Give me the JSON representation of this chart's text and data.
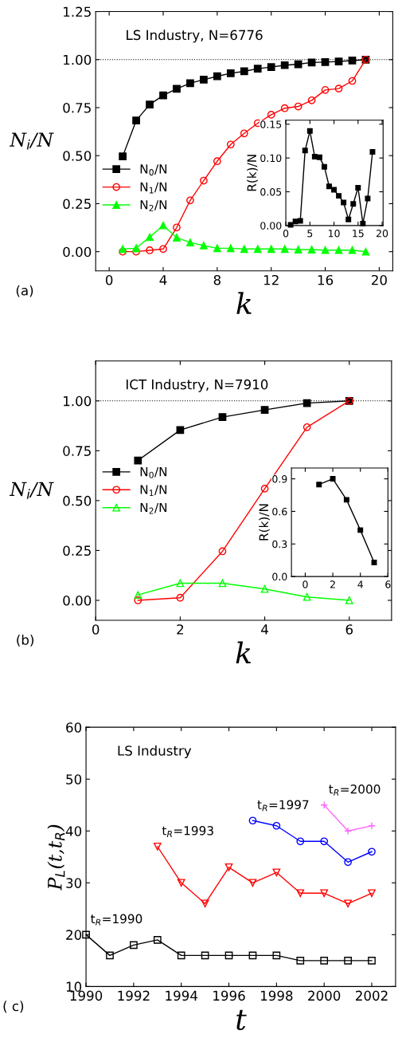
{
  "chart_data": [
    {
      "type": "line",
      "title": "LS Industry, N=6776",
      "xlabel": "k",
      "ylabel": "N$_{i}$/N",
      "annotations": [
        "(a)"
      ],
      "xlim": [
        -1,
        21
      ],
      "xticks": [
        0,
        4,
        8,
        12,
        16,
        20
      ],
      "ylim": [
        -0.1,
        1.25
      ],
      "yticks": [
        {
          "value": 0,
          "label": "0.00"
        },
        {
          "value": 0.25,
          "label": "0.25"
        },
        {
          "value": 0.5,
          "label": "0.50"
        },
        {
          "value": 0.75,
          "label": "0.75"
        },
        {
          "value": 1,
          "label": "1.00"
        },
        {
          "value": 1.25,
          "label": "1.25"
        }
      ],
      "grid": false,
      "legend": "lower left",
      "ref_lines": [
        {
          "axis": "y",
          "value": 1,
          "line_style": "dotted",
          "color": "#000000"
        }
      ],
      "x": [
        1,
        2,
        3,
        4,
        5,
        6,
        7,
        8,
        9,
        10,
        11,
        12,
        13,
        14,
        15,
        16,
        17,
        18,
        19
      ],
      "series": [
        {
          "name": "N$_{0}$/N",
          "color": "#000000",
          "marker": "square",
          "values": [
            0.496,
            0.683,
            0.766,
            0.814,
            0.848,
            0.877,
            0.896,
            0.913,
            0.929,
            0.939,
            0.953,
            0.961,
            0.971,
            0.976,
            0.985,
            0.987,
            0.99,
            0.995,
            1.0
          ]
        },
        {
          "name": "N$_{1}$/N",
          "color": "#ff0000",
          "marker": "circle_open",
          "values": [
            0.0,
            0.0,
            0.007,
            0.014,
            0.126,
            0.267,
            0.37,
            0.471,
            0.558,
            0.616,
            0.669,
            0.713,
            0.747,
            0.756,
            0.788,
            0.842,
            0.849,
            0.889,
            1.0
          ]
        },
        {
          "name": "N$_{2}$/N",
          "color": "#00ff00",
          "marker": "triangle",
          "values": [
            0.014,
            0.018,
            0.076,
            0.137,
            0.073,
            0.048,
            0.032,
            0.018,
            0.018,
            0.014,
            0.014,
            0.014,
            0.014,
            0.011,
            0.011,
            0.008,
            0.008,
            0.008,
            0.0
          ]
        }
      ]
    },
    {
      "type": "line",
      "ylabel": "R(k)/N",
      "xlim": [
        0,
        20.2
      ],
      "xticks": [
        0,
        5,
        10,
        15,
        20
      ],
      "ylim": [
        0,
        0.156
      ],
      "yticks": [
        {
          "value": 0,
          "label": "0.00"
        },
        {
          "value": 0.05,
          "label": "0.05"
        },
        {
          "value": 0.1,
          "label": "0.10"
        },
        {
          "value": 0.15,
          "label": "0.15"
        }
      ],
      "grid": false,
      "x": [
        1,
        2,
        3,
        4,
        5,
        6,
        7,
        8,
        9,
        10,
        11,
        12,
        13,
        14,
        15,
        16,
        17,
        18
      ],
      "series": [
        {
          "color": "#000000",
          "marker": "square",
          "values": [
            0.001,
            0.006,
            0.007,
            0.111,
            0.14,
            0.102,
            0.101,
            0.087,
            0.058,
            0.053,
            0.044,
            0.034,
            0.009,
            0.032,
            0.056,
            0.003,
            0.04,
            0.109
          ]
        }
      ]
    },
    {
      "type": "line",
      "title": "ICT Industry, N=7910",
      "xlabel": "k",
      "ylabel": "N$_{i}$/N",
      "annotations": [
        "(b)"
      ],
      "xlim": [
        0,
        7
      ],
      "xticks": [
        0,
        2,
        4,
        6
      ],
      "ylim": [
        -0.1,
        1.2
      ],
      "yticks": [
        {
          "value": 0,
          "label": "0.00"
        },
        {
          "value": 0.25,
          "label": "0.25"
        },
        {
          "value": 0.5,
          "label": "0.50"
        },
        {
          "value": 0.75,
          "label": "0.75"
        },
        {
          "value": 1,
          "label": "1.00"
        }
      ],
      "grid": false,
      "legend": "center left",
      "ref_lines": [
        {
          "axis": "y",
          "value": 1,
          "line_style": "dotted",
          "color": "#000000"
        }
      ],
      "x": [
        1,
        2,
        3,
        4,
        5,
        6
      ],
      "series": [
        {
          "name": "N$_{0}$/N",
          "color": "#000000",
          "marker": "square",
          "values": [
            0.701,
            0.854,
            0.919,
            0.955,
            0.989,
            1.0
          ]
        },
        {
          "name": "N$_{1}$/N",
          "color": "#ff0000",
          "marker": "circle_open",
          "values": [
            0.0,
            0.013,
            0.246,
            0.56,
            0.868,
            1.0
          ]
        },
        {
          "name": "N$_{2}$/N",
          "color": "#00ff00",
          "marker": "triangle_open",
          "values": [
            0.027,
            0.086,
            0.086,
            0.057,
            0.017,
            0.0
          ]
        }
      ]
    },
    {
      "type": "line",
      "ylabel": "R(k)/N",
      "xlim": [
        -1,
        6
      ],
      "xticks": [
        0,
        2,
        4,
        6
      ],
      "ylim": [
        0,
        1.0
      ],
      "yticks": [
        {
          "value": 0,
          "label": "0.0"
        },
        {
          "value": 0.3,
          "label": "0.3"
        },
        {
          "value": 0.6,
          "label": "0.6"
        },
        {
          "value": 0.9,
          "label": "0.9"
        }
      ],
      "grid": false,
      "x": [
        1,
        2,
        3,
        4,
        5
      ],
      "series": [
        {
          "color": "#000000",
          "marker": "square",
          "values": [
            0.848,
            0.9,
            0.707,
            0.428,
            0.13
          ]
        }
      ]
    },
    {
      "type": "line",
      "title": "LS Industry",
      "xlabel": "t",
      "ylabel": "P$_{L}$(t,t$_{R}$)",
      "annotations": [
        "( c)"
      ],
      "xlim": [
        1990,
        2003
      ],
      "xticks": [
        1990,
        1992,
        1994,
        1996,
        1998,
        2000,
        2002
      ],
      "ylim": [
        10,
        60
      ],
      "yticks": [
        10,
        20,
        30,
        40,
        50,
        60
      ],
      "grid": false,
      "series": [
        {
          "name": "t$_{R}$=1990",
          "color": "#000000",
          "marker": "square_open",
          "x": [
            1990,
            1991,
            1992,
            1993,
            1994,
            1995,
            1996,
            1997,
            1998,
            1999,
            2000,
            2001,
            2002
          ],
          "values": [
            20,
            16,
            18,
            19,
            16,
            16,
            16,
            16,
            16,
            15,
            15,
            15,
            15
          ]
        },
        {
          "name": "t$_{R}$=1993",
          "color": "#ff0000",
          "marker": "triangle_down_open",
          "x": [
            1993,
            1994,
            1995,
            1996,
            1997,
            1998,
            1999,
            2000,
            2001,
            2002
          ],
          "values": [
            37,
            30,
            26,
            33,
            30,
            32,
            28,
            28,
            26,
            28
          ]
        },
        {
          "name": "t$_{R}$=1997",
          "color": "#0000ff",
          "marker": "circle_open",
          "x": [
            1997,
            1998,
            1999,
            2000,
            2001,
            2002
          ],
          "values": [
            42,
            41,
            38,
            38,
            34,
            36
          ]
        },
        {
          "name": "t$_{R}$=2000",
          "color": "#ff66ff",
          "marker": "cross",
          "x": [
            2000,
            2001,
            2002
          ],
          "values": [
            45,
            40,
            41
          ]
        }
      ]
    }
  ]
}
